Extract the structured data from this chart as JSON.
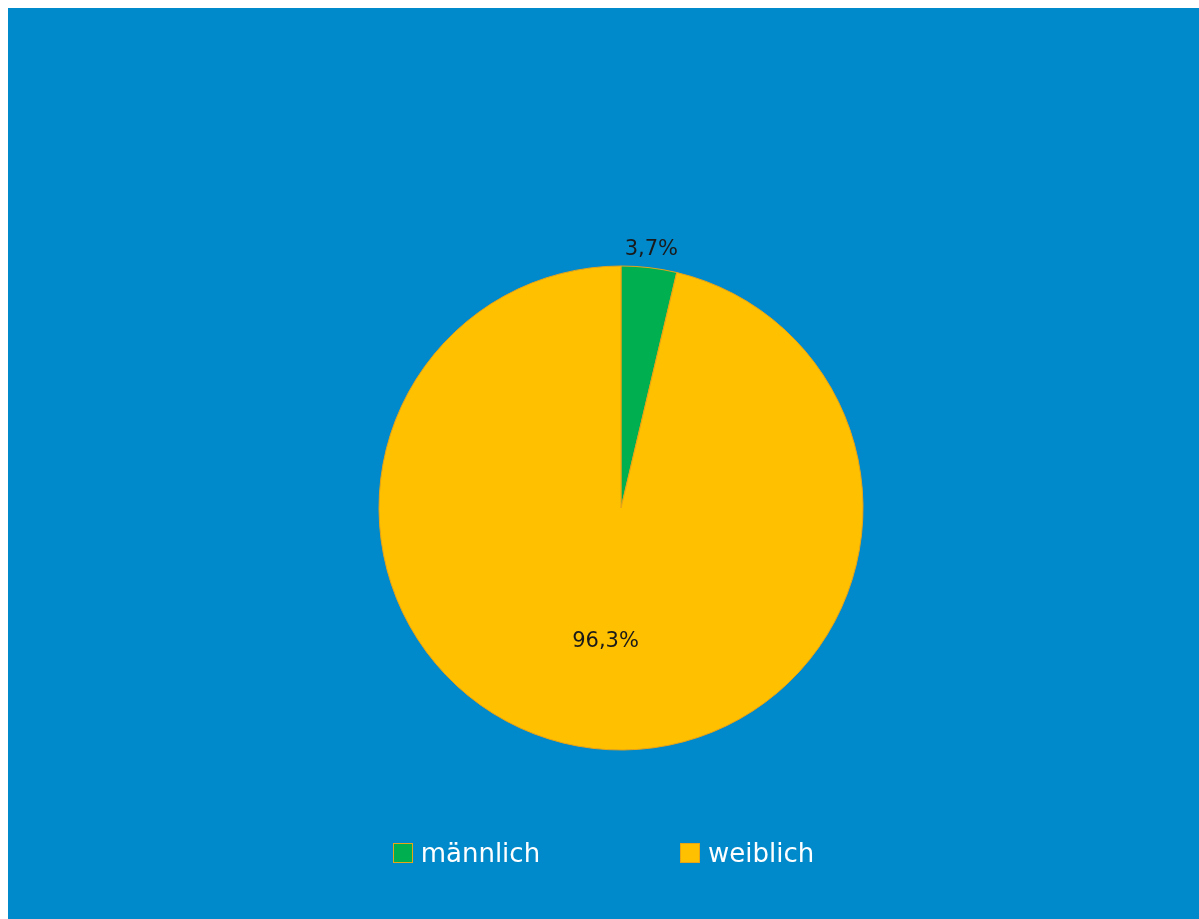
{
  "chart_data": {
    "type": "pie",
    "categories": [
      "männlich",
      "weiblich"
    ],
    "values": [
      3.7,
      96.3
    ],
    "colors": [
      "#00b050",
      "#ffc000"
    ],
    "value_labels": [
      "3,7%",
      "96,3%"
    ],
    "legend": "bottom"
  }
}
